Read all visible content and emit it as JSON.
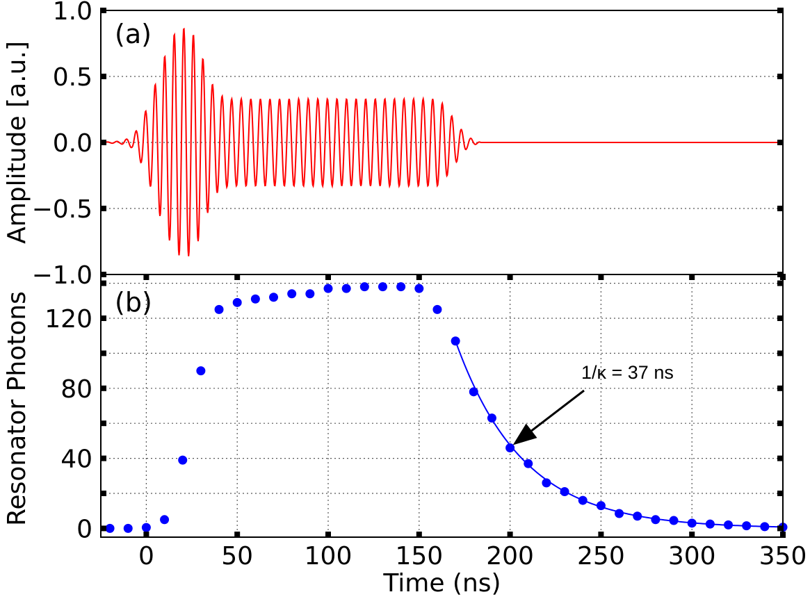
{
  "chart_data": [
    {
      "type": "line",
      "panel": "(a)",
      "ylabel": "Amplitude [a.u.]",
      "xlim": [
        -25,
        350
      ],
      "ylim": [
        -1.0,
        1.0
      ],
      "yticks": [
        1.0,
        0.5,
        0.0,
        -0.5,
        -1.0
      ],
      "ytick_labels": [
        "1.0",
        "0.5",
        "0.0",
        "−0.5",
        "−1.0"
      ],
      "grid": true,
      "series": [
        {
          "color": "#ff0000",
          "carrier_frequency_GHz": 0.19,
          "envelope": {
            "t": [
              -22,
              -14,
              -8,
              -4,
              0,
              4,
              8,
              12,
              16,
              20,
              24,
              28,
              32,
              36,
              40,
              46,
              160,
              164,
              168,
              172,
              176,
              180,
              184
            ],
            "a": [
              0.003,
              0.01,
              0.04,
              0.12,
              0.25,
              0.4,
              0.58,
              0.72,
              0.84,
              0.87,
              0.86,
              0.77,
              0.6,
              0.45,
              0.36,
              0.33,
              0.33,
              0.28,
              0.2,
              0.12,
              0.05,
              0.02,
              0.0
            ]
          }
        }
      ]
    },
    {
      "type": "scatter",
      "panel": "(b)",
      "xlabel": "Time (ns)",
      "ylabel": "Resonator Photons",
      "xlim": [
        -25,
        350
      ],
      "ylim": [
        -5,
        145
      ],
      "xticks": [
        0,
        50,
        100,
        150,
        200,
        250,
        300,
        350
      ],
      "xtick_labels": [
        "0",
        "50",
        "100",
        "150",
        "200",
        "250",
        "300",
        "350"
      ],
      "yticks": [
        0,
        40,
        80,
        120
      ],
      "ytick_labels": [
        "0",
        "40",
        "80",
        "120"
      ],
      "grid": true,
      "series": [
        {
          "color": "#0000ff",
          "x": [
            -20,
            -10,
            0,
            10,
            20,
            30,
            40,
            50,
            60,
            70,
            80,
            90,
            100,
            110,
            120,
            130,
            140,
            150,
            160,
            170,
            180,
            190,
            200,
            210,
            220,
            230,
            240,
            250,
            260,
            270,
            280,
            290,
            300,
            310,
            320,
            330,
            340,
            350
          ],
          "y": [
            0,
            0,
            0.5,
            5,
            39,
            90,
            125,
            129,
            131,
            132,
            134,
            134,
            137,
            137,
            138,
            138,
            138,
            137,
            125,
            107,
            78,
            63,
            46,
            37,
            26,
            21,
            16,
            13,
            8.5,
            7,
            5,
            4.5,
            3,
            2.5,
            2,
            1.5,
            1,
            0.7
          ]
        }
      ],
      "fit": {
        "color": "#0000ff",
        "model": "exponential decay",
        "x_start": 170,
        "x_end": 350,
        "y0": 107,
        "tau": 37
      },
      "annotation": {
        "text": "1/κ = 37 ns",
        "points_to": [
          200,
          46
        ]
      }
    }
  ]
}
